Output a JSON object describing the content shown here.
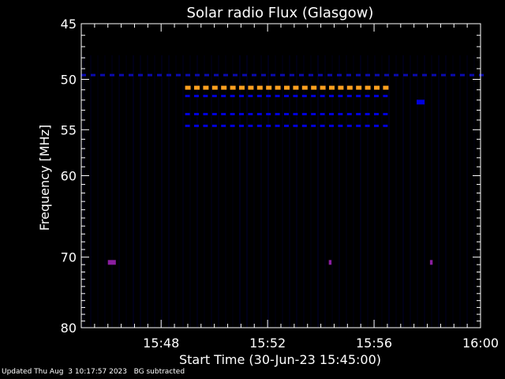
{
  "footer": {
    "updated": "Updated Thu Aug  3 10:17:57 2023",
    "note": "BG subtracted"
  },
  "chart_data": {
    "type": "heatmap",
    "title": "Solar radio Flux (Glasgow)",
    "xlabel": "Start Time (30-Jun-23 15:45:00)",
    "ylabel": "Frequency [MHz]",
    "x_tick_labels": [
      "15:48",
      "15:52",
      "15:56",
      "16:00"
    ],
    "x_ticks_minutes": [
      3,
      7,
      11,
      15
    ],
    "xlim_minutes": [
      0,
      15
    ],
    "y_tick_labels": [
      "45",
      "50",
      "55",
      "60",
      "70",
      "80"
    ],
    "y_ticks": [
      45,
      50,
      55,
      60,
      70,
      80
    ],
    "ylim": [
      80,
      45
    ],
    "y_scale": "log",
    "colors": {
      "background": "#000000",
      "low": "#000050",
      "mid": "#0000dd",
      "high": "#ffa020",
      "spike": "#8a1ea0"
    },
    "features": [
      {
        "name": "orange-band",
        "freq": 50.8,
        "t_start": 3.9,
        "t_end": 11.6,
        "level": "high"
      },
      {
        "name": "blue-band-1",
        "freq": 51.6,
        "t_start": 3.9,
        "t_end": 11.6,
        "level": "mid"
      },
      {
        "name": "blue-band-2",
        "freq": 53.4,
        "t_start": 3.9,
        "t_end": 11.6,
        "level": "mid"
      },
      {
        "name": "blue-band-3",
        "freq": 54.6,
        "t_start": 3.9,
        "t_end": 11.6,
        "level": "mid"
      },
      {
        "name": "dotted-band",
        "freq": 49.6,
        "t_start": 0.0,
        "t_end": 15.0,
        "level": "low"
      },
      {
        "name": "spike-70-a",
        "freq": 70.7,
        "t_start": 1.0,
        "t_end": 1.3,
        "level": "spike"
      },
      {
        "name": "spike-70-b",
        "freq": 70.7,
        "t_start": 9.3,
        "t_end": 9.4,
        "level": "spike"
      },
      {
        "name": "spike-70-c",
        "freq": 70.7,
        "t_start": 13.1,
        "t_end": 13.2,
        "level": "spike"
      },
      {
        "name": "blob-52",
        "freq": 52.2,
        "t_start": 12.6,
        "t_end": 12.9,
        "level": "mid"
      }
    ]
  }
}
